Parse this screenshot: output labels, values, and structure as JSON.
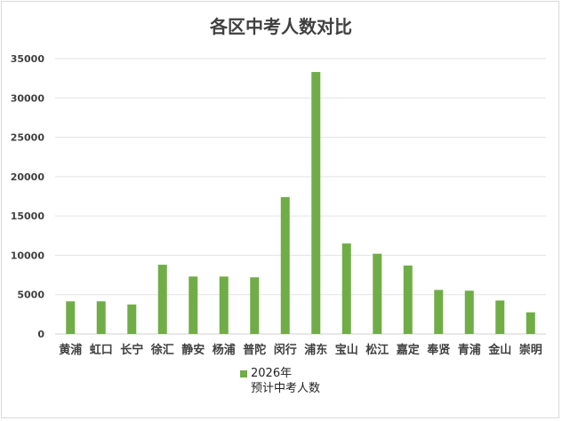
{
  "chart_data": {
    "type": "bar",
    "title": "各区中考人数对比",
    "categories": [
      "黄浦",
      "虹口",
      "长宁",
      "徐汇",
      "静安",
      "杨浦",
      "普陀",
      "闵行",
      "浦东",
      "宝山",
      "松江",
      "嘉定",
      "奉贤",
      "青浦",
      "金山",
      "崇明"
    ],
    "series": [
      {
        "name_line1": "2026年",
        "name_line2": "预计中考人数",
        "color": "#70ad47",
        "values": [
          4150,
          4150,
          3750,
          8800,
          7300,
          7300,
          7200,
          17400,
          33300,
          11500,
          10200,
          8700,
          5600,
          5500,
          4250,
          2750
        ]
      }
    ],
    "y_ticks": [
      "0",
      "5000",
      "10000",
      "15000",
      "20000",
      "25000",
      "30000",
      "35000"
    ],
    "ylim": [
      0,
      35000
    ],
    "grid": true,
    "legend_position": "bottom"
  }
}
